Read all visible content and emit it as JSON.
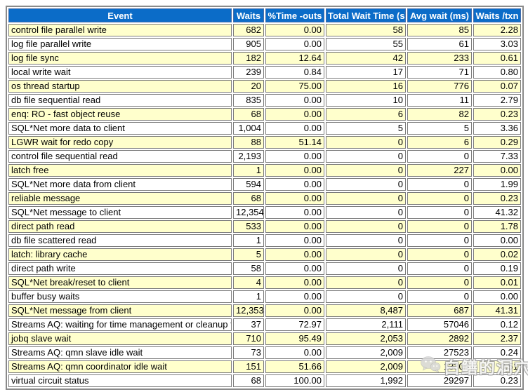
{
  "colors": {
    "header_bg": "#0b6cc8",
    "header_text": "#ffffff",
    "row_bg": "#ffffff",
    "row_alt_bg": "#ffffcc",
    "cell_border": "#7b7b7b",
    "table_border": "#8a8a8a"
  },
  "table": {
    "columns": [
      "Event",
      "Waits",
      "%Time -outs",
      "Total Wait Time (s)",
      "Avg wait (ms)",
      "Waits /txn"
    ],
    "column_keys": [
      "event",
      "waits",
      "pct-time-outs",
      "total-wait-time-s",
      "avg-wait-ms",
      "waits-per-txn"
    ],
    "rows": [
      [
        "control file parallel write",
        "682",
        "0.00",
        "58",
        "85",
        "2.28"
      ],
      [
        "log file parallel write",
        "905",
        "0.00",
        "55",
        "61",
        "3.03"
      ],
      [
        "log file sync",
        "182",
        "12.64",
        "42",
        "233",
        "0.61"
      ],
      [
        "local write wait",
        "239",
        "0.84",
        "17",
        "71",
        "0.80"
      ],
      [
        "os thread startup",
        "20",
        "75.00",
        "16",
        "776",
        "0.07"
      ],
      [
        "db file sequential read",
        "835",
        "0.00",
        "10",
        "11",
        "2.79"
      ],
      [
        "enq: RO - fast object reuse",
        "68",
        "0.00",
        "6",
        "82",
        "0.23"
      ],
      [
        "SQL*Net more data to client",
        "1,004",
        "0.00",
        "5",
        "5",
        "3.36"
      ],
      [
        "LGWR wait for redo copy",
        "88",
        "51.14",
        "0",
        "6",
        "0.29"
      ],
      [
        "control file sequential read",
        "2,193",
        "0.00",
        "0",
        "0",
        "7.33"
      ],
      [
        "latch free",
        "1",
        "0.00",
        "0",
        "227",
        "0.00"
      ],
      [
        "SQL*Net more data from client",
        "594",
        "0.00",
        "0",
        "0",
        "1.99"
      ],
      [
        "reliable message",
        "68",
        "0.00",
        "0",
        "0",
        "0.23"
      ],
      [
        "SQL*Net message to client",
        "12,354",
        "0.00",
        "0",
        "0",
        "41.32"
      ],
      [
        "direct path read",
        "533",
        "0.00",
        "0",
        "0",
        "1.78"
      ],
      [
        "db file scattered read",
        "1",
        "0.00",
        "0",
        "0",
        "0.00"
      ],
      [
        "latch: library cache",
        "5",
        "0.00",
        "0",
        "0",
        "0.02"
      ],
      [
        "direct path write",
        "58",
        "0.00",
        "0",
        "0",
        "0.19"
      ],
      [
        "SQL*Net break/reset to client",
        "4",
        "0.00",
        "0",
        "0",
        "0.01"
      ],
      [
        "buffer busy waits",
        "1",
        "0.00",
        "0",
        "0",
        "0.00"
      ],
      [
        "SQL*Net message from client",
        "12,353",
        "0.00",
        "8,487",
        "687",
        "41.31"
      ],
      [
        "Streams AQ: waiting for time management or cleanup tasks",
        "37",
        "72.97",
        "2,111",
        "57046",
        "0.12"
      ],
      [
        "jobq slave wait",
        "710",
        "95.49",
        "2,053",
        "2892",
        "2.37"
      ],
      [
        "Streams AQ: qmn slave idle wait",
        "73",
        "0.00",
        "2,009",
        "27523",
        "0.24"
      ],
      [
        "Streams AQ: qmn coordinator idle wait",
        "151",
        "51.66",
        "2,009",
        "13304",
        "0.51"
      ],
      [
        "virtual circuit status",
        "68",
        "100.00",
        "1,992",
        "29297",
        "0.23"
      ]
    ]
  },
  "watermark": {
    "icon": "wechat-icon",
    "text": "白鳝的洞穴"
  }
}
